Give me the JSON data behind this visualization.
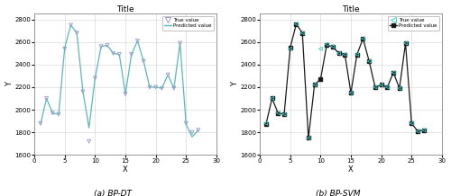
{
  "title": "Title",
  "xlabel": "X",
  "ylabel": "Y",
  "xlim": [
    0,
    30
  ],
  "ylim": [
    1600,
    2850
  ],
  "yticks": [
    1600,
    1800,
    2000,
    2200,
    2400,
    2600,
    2800
  ],
  "xticks": [
    0,
    5,
    10,
    15,
    20,
    25,
    30
  ],
  "x": [
    1,
    2,
    3,
    4,
    5,
    6,
    7,
    8,
    9,
    10,
    11,
    12,
    13,
    14,
    15,
    16,
    17,
    18,
    19,
    20,
    21,
    22,
    23,
    24,
    25,
    26,
    27
  ],
  "pred_dt": [
    1870,
    2100,
    1970,
    1960,
    2550,
    2750,
    2680,
    2160,
    1840,
    2280,
    2560,
    2570,
    2500,
    2490,
    2140,
    2490,
    2610,
    2430,
    2200,
    2200,
    2190,
    2310,
    2190,
    2590,
    1870,
    1760,
    1820
  ],
  "true_dt": [
    1880,
    2100,
    1970,
    1960,
    2540,
    2750,
    2680,
    2160,
    1720,
    2280,
    2560,
    2570,
    2500,
    2490,
    2140,
    2490,
    2610,
    2430,
    2200,
    2200,
    2190,
    2310,
    2190,
    2590,
    1880,
    1800,
    1820
  ],
  "pred_svm": [
    1870,
    2100,
    1970,
    1960,
    2550,
    2760,
    2680,
    1750,
    2220,
    2270,
    2570,
    2560,
    2500,
    2490,
    2150,
    2490,
    2630,
    2430,
    2200,
    2220,
    2200,
    2330,
    2190,
    2590,
    1880,
    1810,
    1820
  ],
  "true_svm": [
    1880,
    2100,
    1970,
    1960,
    2540,
    2760,
    2680,
    1750,
    2220,
    2540,
    2580,
    2560,
    2500,
    2490,
    2150,
    2490,
    2630,
    2430,
    2200,
    2220,
    2200,
    2330,
    2190,
    2590,
    1880,
    1810,
    1820
  ],
  "line_color_dt": "#5ab8b8",
  "line_color_svm": "#1a1a1a",
  "marker_color_dt": "#9999cc",
  "marker_color_svm": "#3dcfcf",
  "caption_left": "(a) BP-DT",
  "caption_right": "(b) BP-SVM",
  "bg_color": "#ffffff",
  "grid_color": "#d0d0d0"
}
